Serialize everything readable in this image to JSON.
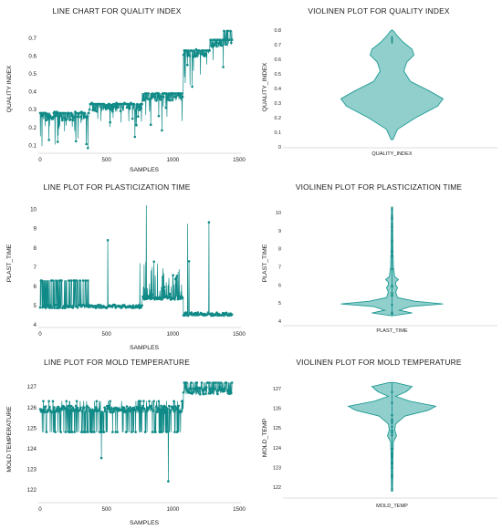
{
  "colors": {
    "series": "#0f8a87",
    "violin_fill": "#7cc7c3",
    "violin_edge": "#1f9a94",
    "axis": "#d0d0d0"
  },
  "chart_data": [
    {
      "id": "line-quality",
      "type": "line",
      "title": "LINE CHART FOR QUALITY INDEX",
      "xlabel": "SAMPLES",
      "ylabel": "QUALITY INDEX",
      "xlim": [
        0,
        1500
      ],
      "ylim": [
        0.07,
        0.76
      ],
      "xticks": [
        0,
        500,
        1000,
        1500
      ],
      "yticks": [
        0.1,
        0.2,
        0.3,
        0.4,
        0.5,
        0.6,
        0.7
      ],
      "n_samples": 1450,
      "baseline_segments": [
        {
          "x": [
            0,
            370
          ],
          "y": 0.28
        },
        {
          "x": [
            370,
            770
          ],
          "y": 0.33
        },
        {
          "x": [
            770,
            1080
          ],
          "y": 0.39
        },
        {
          "x": [
            1080,
            1280
          ],
          "y": 0.63
        },
        {
          "x": [
            1280,
            1450
          ],
          "y": 0.69
        }
      ]
    },
    {
      "id": "violin-quality",
      "type": "violin",
      "title": "VIOLINEN PLOT FOR QUALITY INDEX",
      "category": "QUALITY_INDEX",
      "ylabel": "QUALITY_INDEX",
      "ylim": [
        0,
        0.82
      ],
      "yticks": [
        0,
        0.1,
        0.2,
        0.3,
        0.4,
        0.5,
        0.6,
        0.7,
        0.8
      ],
      "min": 0.05,
      "max": 0.8,
      "median": 0.33
    },
    {
      "id": "line-plast",
      "type": "line",
      "title": "LINE PLOT FOR PLASTICIZATION TIME",
      "xlabel": "SAMPLES",
      "ylabel": "PLAST_TIME",
      "xlim": [
        0,
        1500
      ],
      "ylim": [
        4,
        10.4
      ],
      "xticks": [
        0,
        500,
        1000,
        1500
      ],
      "yticks": [
        4,
        5,
        6,
        7,
        8,
        9,
        10
      ],
      "n_samples": 1450,
      "baseline_segments": [
        {
          "x": [
            0,
            770
          ],
          "y": 4.95
        },
        {
          "x": [
            770,
            1080
          ],
          "y": 5.4
        },
        {
          "x": [
            1080,
            1450
          ],
          "y": 4.55
        }
      ]
    },
    {
      "id": "violin-plast",
      "type": "violin",
      "title": "VIOLINEN PLOT FOR PLASTICIZATION TIME",
      "category": "PLAST_TIME",
      "ylabel": "PLAST_TIME",
      "ylim": [
        3.8,
        10.6
      ],
      "yticks": [
        4,
        5,
        6,
        7,
        8,
        9,
        10
      ],
      "min": 4.3,
      "max": 10.3,
      "median": 4.95
    },
    {
      "id": "line-mold",
      "type": "line",
      "title": "LINE PLOT FOR MOLD TEMPERATURE",
      "xlabel": "SAMPLES",
      "ylabel": "MOLD TEMPERATURE",
      "xlim": [
        0,
        1500
      ],
      "ylim": [
        121.5,
        127.4
      ],
      "xticks": [
        0,
        500,
        1000,
        1500
      ],
      "yticks": [
        122,
        123,
        124,
        125,
        126,
        127
      ],
      "n_samples": 1450,
      "baseline_segments": [
        {
          "x": [
            0,
            1080
          ],
          "y": 125.9
        },
        {
          "x": [
            1080,
            1450
          ],
          "y": 126.8
        }
      ]
    },
    {
      "id": "violin-mold",
      "type": "violin",
      "title": "VIOLINEN PLOT FOR MOLD TEMPERATURE",
      "category": "MOLD_TEMP",
      "ylabel": "MOLD_TEMP",
      "ylim": [
        121.5,
        127.5
      ],
      "yticks": [
        122,
        123,
        124,
        125,
        126,
        127
      ],
      "min": 121.8,
      "max": 127.3,
      "median": 126.1
    }
  ]
}
